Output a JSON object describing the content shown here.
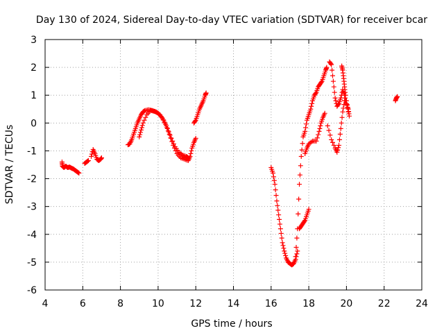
{
  "chart_data": {
    "type": "scatter",
    "title": "Day 130 of 2024, Sidereal Day-to-day VTEC variation (SDTVAR) for receiver bcar",
    "xlabel": "GPS time / hours",
    "ylabel": "SDTVAR / TECUs",
    "xlim": [
      4,
      24
    ],
    "ylim": [
      -6,
      3
    ],
    "xticks": [
      4,
      6,
      8,
      10,
      12,
      14,
      16,
      18,
      20,
      22,
      24
    ],
    "yticks": [
      -6,
      -5,
      -4,
      -3,
      -2,
      -1,
      0,
      1,
      2,
      3
    ],
    "grid": true,
    "marker": "+",
    "series_color": "#ff0000",
    "series": [
      {
        "name": "bcar",
        "segments": [
          [
            [
              4.9,
              -1.4
            ],
            [
              4.92,
              -1.55
            ],
            [
              5.0,
              -1.6
            ],
            [
              5.1,
              -1.55
            ],
            [
              5.2,
              -1.6
            ],
            [
              5.3,
              -1.58
            ],
            [
              5.4,
              -1.62
            ],
            [
              5.5,
              -1.65
            ],
            [
              5.6,
              -1.7
            ],
            [
              5.7,
              -1.75
            ],
            [
              5.8,
              -1.8
            ]
          ],
          [
            [
              6.1,
              -1.45
            ],
            [
              6.2,
              -1.4
            ],
            [
              6.3,
              -1.35
            ]
          ],
          [
            [
              6.45,
              -1.2
            ],
            [
              6.55,
              -0.95
            ],
            [
              6.65,
              -1.1
            ],
            [
              6.75,
              -1.3
            ],
            [
              6.85,
              -1.35
            ],
            [
              6.95,
              -1.3
            ],
            [
              7.0,
              -1.25
            ]
          ],
          [
            [
              8.4,
              -0.78
            ],
            [
              8.5,
              -0.75
            ],
            [
              8.6,
              -0.6
            ],
            [
              8.7,
              -0.4
            ],
            [
              8.8,
              -0.2
            ],
            [
              8.9,
              0.0
            ],
            [
              9.0,
              0.15
            ],
            [
              9.1,
              0.3
            ],
            [
              9.2,
              0.4
            ],
            [
              9.3,
              0.45
            ],
            [
              9.5,
              0.48
            ],
            [
              9.7,
              0.45
            ],
            [
              9.9,
              0.4
            ],
            [
              10.1,
              0.3
            ],
            [
              10.3,
              0.1
            ],
            [
              10.5,
              -0.2
            ],
            [
              10.7,
              -0.55
            ],
            [
              10.9,
              -0.85
            ],
            [
              11.1,
              -1.05
            ],
            [
              11.3,
              -1.15
            ],
            [
              11.5,
              -1.2
            ],
            [
              11.6,
              -1.25
            ]
          ],
          [
            [
              9.0,
              -0.5
            ],
            [
              9.1,
              -0.25
            ],
            [
              9.2,
              0.0
            ],
            [
              9.4,
              0.3
            ],
            [
              9.6,
              0.45
            ],
            [
              9.8,
              0.42
            ],
            [
              10.0,
              0.35
            ],
            [
              10.2,
              0.2
            ],
            [
              10.4,
              -0.05
            ],
            [
              10.6,
              -0.4
            ],
            [
              10.8,
              -0.8
            ],
            [
              11.0,
              -1.1
            ],
            [
              11.2,
              -1.25
            ],
            [
              11.4,
              -1.3
            ],
            [
              11.6,
              -1.35
            ],
            [
              11.7,
              -1.2
            ],
            [
              11.8,
              -0.9
            ],
            [
              11.9,
              -0.7
            ],
            [
              12.0,
              -0.55
            ]
          ],
          [
            [
              11.9,
              0.0
            ],
            [
              12.0,
              0.1
            ],
            [
              12.1,
              0.3
            ],
            [
              12.2,
              0.5
            ],
            [
              12.3,
              0.65
            ],
            [
              12.4,
              0.8
            ],
            [
              12.5,
              1.0
            ],
            [
              12.55,
              1.08
            ]
          ],
          [
            [
              16.0,
              -1.6
            ],
            [
              16.1,
              -1.8
            ],
            [
              16.2,
              -2.2
            ],
            [
              16.3,
              -2.8
            ],
            [
              16.4,
              -3.3
            ],
            [
              16.5,
              -3.8
            ],
            [
              16.6,
              -4.3
            ],
            [
              16.7,
              -4.6
            ],
            [
              16.8,
              -4.85
            ],
            [
              16.9,
              -5.0
            ],
            [
              17.0,
              -5.05
            ],
            [
              17.1,
              -5.1
            ],
            [
              17.2,
              -5.05
            ],
            [
              17.3,
              -4.9
            ],
            [
              17.4,
              -4.6
            ]
          ],
          [
            [
              17.3,
              -4.8
            ],
            [
              17.4,
              -3.8
            ],
            [
              17.5,
              -2.2
            ],
            [
              17.6,
              -1.2
            ],
            [
              17.7,
              -0.5
            ],
            [
              17.8,
              -0.3
            ],
            [
              17.9,
              0.1
            ],
            [
              18.0,
              0.3
            ],
            [
              18.1,
              0.5
            ],
            [
              18.2,
              0.8
            ],
            [
              18.3,
              1.0
            ],
            [
              18.4,
              1.1
            ],
            [
              18.5,
              1.3
            ],
            [
              18.6,
              1.4
            ],
            [
              18.7,
              1.5
            ],
            [
              18.8,
              1.7
            ],
            [
              18.9,
              1.9
            ],
            [
              18.95,
              2.0
            ]
          ],
          [
            [
              17.5,
              -3.8
            ],
            [
              17.6,
              -3.7
            ],
            [
              17.7,
              -3.6
            ],
            [
              17.8,
              -3.5
            ],
            [
              17.9,
              -3.3
            ],
            [
              18.0,
              -3.1
            ]
          ],
          [
            [
              17.8,
              -1.1
            ],
            [
              17.9,
              -0.9
            ],
            [
              18.0,
              -0.75
            ],
            [
              18.2,
              -0.65
            ],
            [
              18.4,
              -0.65
            ],
            [
              18.55,
              -0.3
            ],
            [
              18.65,
              0.0
            ],
            [
              18.75,
              0.2
            ],
            [
              18.85,
              0.35
            ]
          ],
          [
            [
              19.0,
              -0.1
            ],
            [
              19.2,
              -0.6
            ],
            [
              19.4,
              -0.9
            ],
            [
              19.5,
              -1.05
            ],
            [
              19.6,
              -0.8
            ],
            [
              19.7,
              -0.2
            ],
            [
              19.8,
              0.4
            ],
            [
              19.9,
              0.8
            ],
            [
              20.0,
              0.8
            ],
            [
              20.1,
              0.4
            ]
          ],
          [
            [
              19.1,
              2.2
            ],
            [
              19.2,
              2.1
            ],
            [
              19.3,
              1.5
            ],
            [
              19.4,
              0.9
            ],
            [
              19.5,
              0.6
            ],
            [
              19.6,
              0.7
            ],
            [
              19.7,
              0.9
            ],
            [
              19.8,
              1.2
            ],
            [
              19.9,
              1.0
            ],
            [
              20.0,
              0.7
            ],
            [
              20.1,
              0.5
            ],
            [
              20.15,
              0.25
            ]
          ],
          [
            [
              19.75,
              2.05
            ],
            [
              19.8,
              1.9
            ],
            [
              19.85,
              1.6
            ],
            [
              19.9,
              1.3
            ],
            [
              19.95,
              1.0
            ]
          ],
          [
            [
              22.6,
              0.8
            ],
            [
              22.65,
              0.9
            ],
            [
              22.7,
              0.95
            ]
          ]
        ]
      }
    ]
  }
}
